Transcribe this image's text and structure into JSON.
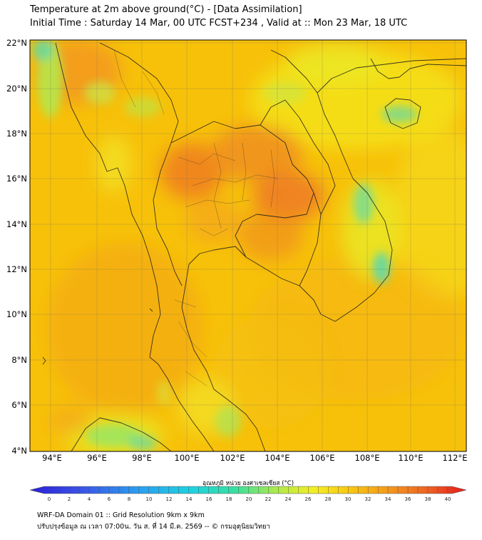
{
  "header": {
    "title": "Temperature at 2m above ground(°C) - [Data Assimilation]",
    "subtitle": "Initial Time : Saturday 14 Mar, 00 UTC FCST+234 , Valid at :: Mon 23 Mar, 18 UTC"
  },
  "axes": {
    "lat_labels": [
      "22°N",
      "20°N",
      "18°N",
      "16°N",
      "14°N",
      "12°N",
      "10°N",
      "8°N",
      "6°N",
      "4°N"
    ],
    "lon_labels": [
      "94°E",
      "96°E",
      "98°E",
      "100°E",
      "102°E",
      "104°E",
      "106°E",
      "108°E",
      "110°E",
      "112°E"
    ]
  },
  "colorbar": {
    "label": "อุณหภูมิ หน่วย องศาเซลเซียส (°C)",
    "ticks": [
      "0",
      "2",
      "4",
      "6",
      "8",
      "10",
      "12",
      "14",
      "16",
      "18",
      "20",
      "22",
      "24",
      "26",
      "28",
      "30",
      "32",
      "34",
      "36",
      "38",
      "40"
    ]
  },
  "footer": {
    "line1": "WRF-DA Domain 01 :: Grid Resolution 9km x 9km",
    "line2": "ปรับปรุงข้อมูล ณ เวลา 07:00น. วัน ส. ที่ 14 มี.ค. 2569 -- © กรมอุตุนิยมวิทยา"
  },
  "colors": {
    "field_base": "#f7c10a",
    "warm": "#f39a1c",
    "hot": "#ee7d22",
    "cool": "#e9ea27",
    "cooler": "#b6e74b",
    "cold": "#5fd8a8"
  }
}
